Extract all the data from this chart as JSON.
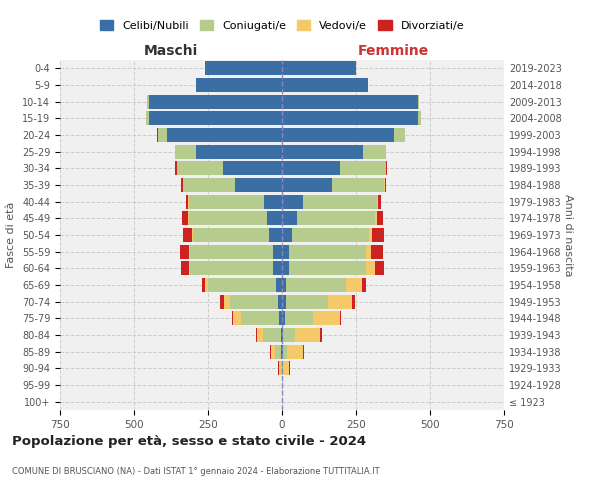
{
  "age_groups": [
    "100+",
    "95-99",
    "90-94",
    "85-89",
    "80-84",
    "75-79",
    "70-74",
    "65-69",
    "60-64",
    "55-59",
    "50-54",
    "45-49",
    "40-44",
    "35-39",
    "30-34",
    "25-29",
    "20-24",
    "15-19",
    "10-14",
    "5-9",
    "0-4"
  ],
  "birth_years": [
    "≤ 1923",
    "1924-1928",
    "1929-1933",
    "1934-1938",
    "1939-1943",
    "1944-1948",
    "1949-1953",
    "1954-1958",
    "1959-1963",
    "1964-1968",
    "1969-1973",
    "1974-1978",
    "1979-1983",
    "1984-1988",
    "1989-1993",
    "1994-1998",
    "1999-2003",
    "2004-2008",
    "2009-2013",
    "2014-2018",
    "2019-2023"
  ],
  "maschi": {
    "celibi": [
      0,
      0,
      0,
      2,
      5,
      10,
      15,
      20,
      30,
      30,
      45,
      50,
      60,
      160,
      200,
      290,
      390,
      450,
      450,
      290,
      260
    ],
    "coniugati": [
      0,
      0,
      5,
      20,
      60,
      130,
      160,
      230,
      280,
      280,
      255,
      265,
      255,
      175,
      155,
      70,
      30,
      10,
      5,
      2,
      1
    ],
    "vedovi": [
      0,
      0,
      5,
      15,
      20,
      25,
      20,
      10,
      5,
      5,
      5,
      3,
      2,
      1,
      1,
      0,
      0,
      0,
      0,
      0,
      0
    ],
    "divorziati": [
      0,
      0,
      2,
      3,
      3,
      5,
      15,
      10,
      25,
      30,
      30,
      20,
      8,
      5,
      5,
      2,
      1,
      0,
      0,
      0,
      0
    ]
  },
  "femmine": {
    "nubili": [
      0,
      0,
      0,
      2,
      5,
      10,
      12,
      15,
      25,
      25,
      35,
      50,
      70,
      170,
      195,
      275,
      380,
      460,
      460,
      290,
      250
    ],
    "coniugate": [
      0,
      0,
      5,
      15,
      40,
      95,
      145,
      200,
      260,
      260,
      260,
      265,
      250,
      175,
      155,
      75,
      35,
      8,
      3,
      1,
      0
    ],
    "vedove": [
      0,
      1,
      20,
      55,
      85,
      90,
      80,
      55,
      30,
      15,
      10,
      5,
      3,
      2,
      1,
      1,
      0,
      0,
      0,
      0,
      0
    ],
    "divorziate": [
      0,
      0,
      3,
      3,
      5,
      5,
      10,
      15,
      30,
      40,
      40,
      20,
      10,
      5,
      5,
      2,
      0,
      0,
      0,
      0,
      0
    ]
  },
  "colors": {
    "celibi_nubili": "#3a6ea5",
    "coniugati": "#b5cc8e",
    "vedovi": "#f5c96a",
    "divorziati": "#cc2222"
  },
  "xlim": 750,
  "title": "Popolazione per età, sesso e stato civile - 2024",
  "subtitle": "COMUNE DI BRUSCIANO (NA) - Dati ISTAT 1° gennaio 2024 - Elaborazione TUTTITALIA.IT",
  "legend_labels": [
    "Celibi/Nubili",
    "Coniugati/e",
    "Vedovi/e",
    "Divorziati/e"
  ],
  "ylabel_left": "Fasce di età",
  "ylabel_right": "Anni di nascita",
  "xlabel_left": "Maschi",
  "xlabel_right": "Femmine"
}
